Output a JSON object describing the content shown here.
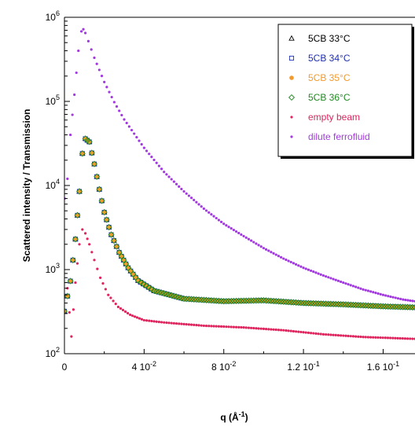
{
  "chart_data": {
    "type": "scatter",
    "xlabel": "q (Å",
    "xlabel_sup": "-1",
    "xlabel_close": ")",
    "ylabel": "Scattered intensity / Transmission",
    "xlim": [
      0,
      0.176
    ],
    "ylim": [
      100,
      1000000
    ],
    "y_scale": "log",
    "x_ticks": [
      {
        "value": 0,
        "mantissa": "0",
        "exponent": ""
      },
      {
        "value": 0.04,
        "mantissa": "4 10",
        "exponent": "-2"
      },
      {
        "value": 0.08,
        "mantissa": "8 10",
        "exponent": "-2"
      },
      {
        "value": 0.12,
        "mantissa": "1.2 10",
        "exponent": "-1"
      },
      {
        "value": 0.16,
        "mantissa": "1.6 10",
        "exponent": "-1"
      }
    ],
    "y_ticks": [
      {
        "value": 100,
        "mantissa": "10",
        "exponent": "2"
      },
      {
        "value": 1000,
        "mantissa": "10",
        "exponent": "3"
      },
      {
        "value": 10000,
        "mantissa": "10",
        "exponent": "4"
      },
      {
        "value": 100000,
        "mantissa": "10",
        "exponent": "5"
      },
      {
        "value": 1000000,
        "mantissa": "10",
        "exponent": "6"
      }
    ],
    "legend_position": "top-right",
    "grid": false,
    "series": [
      {
        "name": "5CB 33°C",
        "marker": "triangle",
        "color": "#000000",
        "x": [
          0.0,
          0.003,
          0.0055,
          0.0075,
          0.009,
          0.0105,
          0.0125,
          0.015,
          0.0175,
          0.02,
          0.0235,
          0.0275,
          0.032,
          0.037,
          0.045,
          0.06,
          0.08,
          0.1,
          0.12,
          0.14,
          0.16,
          0.176
        ],
        "y": [
          320,
          730,
          2300,
          8500,
          24000,
          36000,
          33000,
          18000,
          9000,
          4800,
          2600,
          1600,
          1050,
          740,
          560,
          450,
          420,
          430,
          400,
          385,
          365,
          355
        ]
      },
      {
        "name": "5CB 34°C",
        "marker": "square",
        "color": "#1f2fb5",
        "x": [
          0.0,
          0.003,
          0.0055,
          0.0075,
          0.009,
          0.0105,
          0.0125,
          0.015,
          0.0175,
          0.02,
          0.0235,
          0.0275,
          0.032,
          0.037,
          0.045,
          0.06,
          0.08,
          0.1,
          0.12,
          0.14,
          0.16,
          0.176
        ],
        "y": [
          320,
          730,
          2300,
          8500,
          24000,
          36000,
          33000,
          18000,
          9000,
          4800,
          2600,
          1600,
          1050,
          740,
          560,
          450,
          420,
          430,
          400,
          385,
          365,
          355
        ]
      },
      {
        "name": "5CB 35°C",
        "marker": "circle",
        "color": "#f29a2e",
        "x": [
          0.0,
          0.003,
          0.0055,
          0.0075,
          0.009,
          0.0105,
          0.0125,
          0.015,
          0.0175,
          0.02,
          0.0235,
          0.0275,
          0.032,
          0.037,
          0.045,
          0.06,
          0.08,
          0.1,
          0.12,
          0.14,
          0.16,
          0.176
        ],
        "y": [
          320,
          730,
          2300,
          8500,
          24000,
          36000,
          33000,
          18000,
          9000,
          4800,
          2600,
          1600,
          1050,
          740,
          560,
          450,
          420,
          430,
          400,
          385,
          365,
          355
        ]
      },
      {
        "name": "5CB 36°C",
        "marker": "diamond",
        "color": "#1e8a1e",
        "x": [
          0.0,
          0.003,
          0.0055,
          0.0075,
          0.009,
          0.0105,
          0.0125,
          0.015,
          0.0175,
          0.02,
          0.0235,
          0.0275,
          0.032,
          0.037,
          0.045,
          0.06,
          0.08,
          0.1,
          0.12,
          0.14,
          0.16,
          0.176
        ],
        "y": [
          320,
          730,
          2300,
          8500,
          24000,
          36000,
          33000,
          18000,
          9000,
          4800,
          2600,
          1600,
          1050,
          740,
          560,
          450,
          420,
          430,
          400,
          385,
          365,
          355
        ]
      },
      {
        "name": "empty beam",
        "marker": "dot",
        "color": "#e0245e",
        "x": [
          0.0015,
          0.0035,
          0.0055,
          0.0075,
          0.009,
          0.0105,
          0.0125,
          0.015,
          0.018,
          0.022,
          0.027,
          0.033,
          0.04,
          0.05,
          0.07,
          0.09,
          0.11,
          0.13,
          0.15,
          0.176
        ],
        "y": [
          600,
          160,
          700,
          2000,
          3000,
          2700,
          2000,
          1300,
          800,
          500,
          360,
          290,
          250,
          235,
          215,
          205,
          190,
          170,
          158,
          150
        ]
      },
      {
        "name": "dilute ferrofluid",
        "marker": "dot",
        "color": "#a23ae0",
        "x": [
          0.0,
          0.0015,
          0.003,
          0.005,
          0.007,
          0.0085,
          0.0095,
          0.0105,
          0.012,
          0.015,
          0.02,
          0.025,
          0.03,
          0.04,
          0.05,
          0.06,
          0.07,
          0.08,
          0.09,
          0.1,
          0.11,
          0.12,
          0.13,
          0.14,
          0.15,
          0.16,
          0.17,
          0.176
        ],
        "y": [
          7000,
          12000,
          40000,
          120000,
          400000,
          680000,
          720000,
          650000,
          520000,
          330000,
          170000,
          98000,
          61000,
          28000,
          14500,
          8500,
          5300,
          3500,
          2500,
          1800,
          1350,
          1050,
          850,
          700,
          580,
          500,
          440,
          420
        ]
      }
    ]
  }
}
